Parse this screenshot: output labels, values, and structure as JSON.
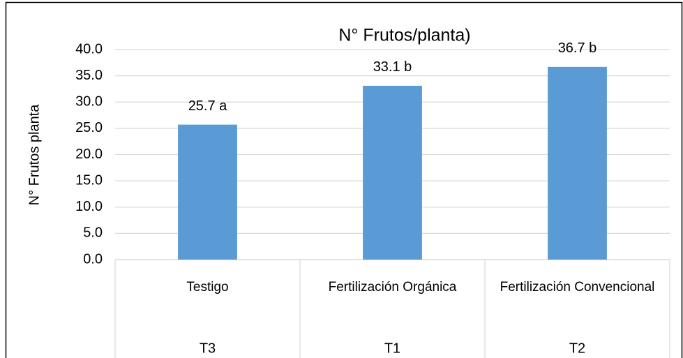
{
  "chart_data": {
    "type": "bar",
    "title": "N° Frutos/planta)",
    "y_axis_label": "N° Frutos planta",
    "categories": [
      "Testigo",
      "Fertilización Orgánica",
      "Fertilización Convencional"
    ],
    "group_labels": [
      "T3",
      "T1",
      "T2"
    ],
    "values": [
      25.7,
      33.1,
      36.7
    ],
    "value_labels": [
      "25.7 a",
      "33.1 b",
      "36.7 b"
    ],
    "color": "#5b9bd5",
    "ylim": [
      0,
      40
    ],
    "yticks": [
      {
        "value": 0,
        "label": "0.0"
      },
      {
        "value": 5,
        "label": "5.0"
      },
      {
        "value": 10,
        "label": "10.0"
      },
      {
        "value": 15,
        "label": "15.0"
      },
      {
        "value": 20,
        "label": "20.0"
      },
      {
        "value": 25,
        "label": "25.0"
      },
      {
        "value": 30,
        "label": "30.0"
      },
      {
        "value": 35,
        "label": "35.0"
      },
      {
        "value": 40,
        "label": "40.0"
      }
    ],
    "grid": true
  }
}
